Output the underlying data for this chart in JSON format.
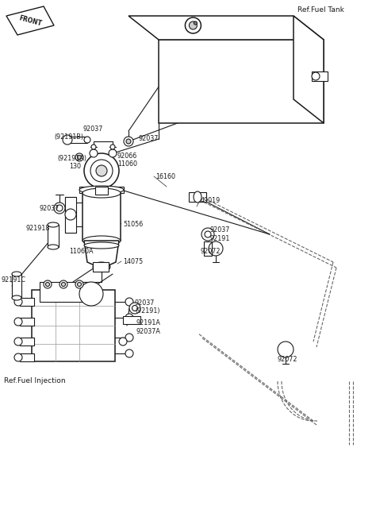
{
  "bg_color": "#ffffff",
  "lc": "#1a1a1a",
  "dc": "#666666",
  "figsize": [
    4.74,
    6.61
  ],
  "dpi": 100,
  "labels": {
    "front": "FRONT",
    "fuel_tank": "Ref.Fuel Tank",
    "fuel_injection": "Ref.Fuel Injection",
    "92037_a": "92037",
    "92037_b": "92037",
    "92037_c": "92037",
    "92037_d": "92037",
    "92191B": "(92191B)",
    "92191A_top": "(92191A)",
    "92066": "92066",
    "130": "130",
    "11060": "11060",
    "16160": "16160",
    "49019": "49019",
    "92037_left": "92037",
    "921918": "921918",
    "51056": "51056",
    "11060A": "11060A",
    "14075": "14075",
    "92037_mid": "92037",
    "92191_mid": "92191",
    "92072_top": "92072",
    "92191C": "92191C",
    "92037_pump": "92037",
    "92191_pump": "(92191)",
    "92191A_pump": "92191A",
    "92037A": "92037A",
    "92072_bot": "92072"
  }
}
